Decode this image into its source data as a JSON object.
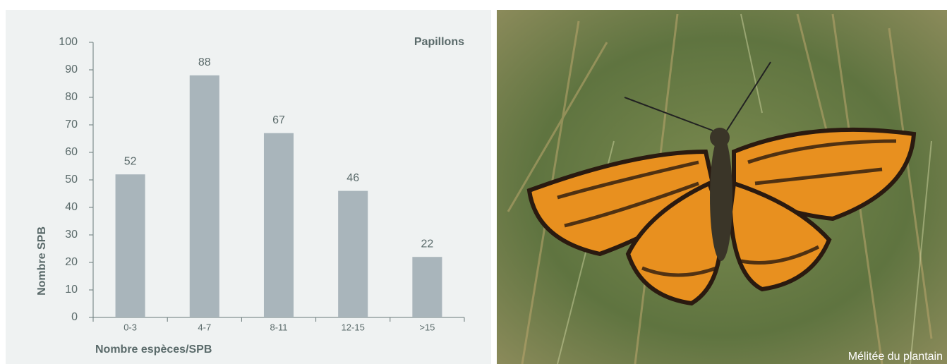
{
  "chart_data": {
    "type": "bar",
    "title": "Papillons",
    "categories": [
      "0-3",
      "4-7",
      "8-11",
      "12-15",
      ">15"
    ],
    "values": [
      52,
      88,
      67,
      46,
      22
    ],
    "color": "#a9b5bb",
    "xlabel": "Nombre espèces/SPB",
    "ylabel": "Nombre  SPB",
    "ylim": [
      0,
      100
    ],
    "yticks": [
      0,
      10,
      20,
      30,
      40,
      50,
      60,
      70,
      80,
      90,
      100
    ],
    "grid": false
  },
  "photo": {
    "caption": "Mélitée du plantain"
  }
}
